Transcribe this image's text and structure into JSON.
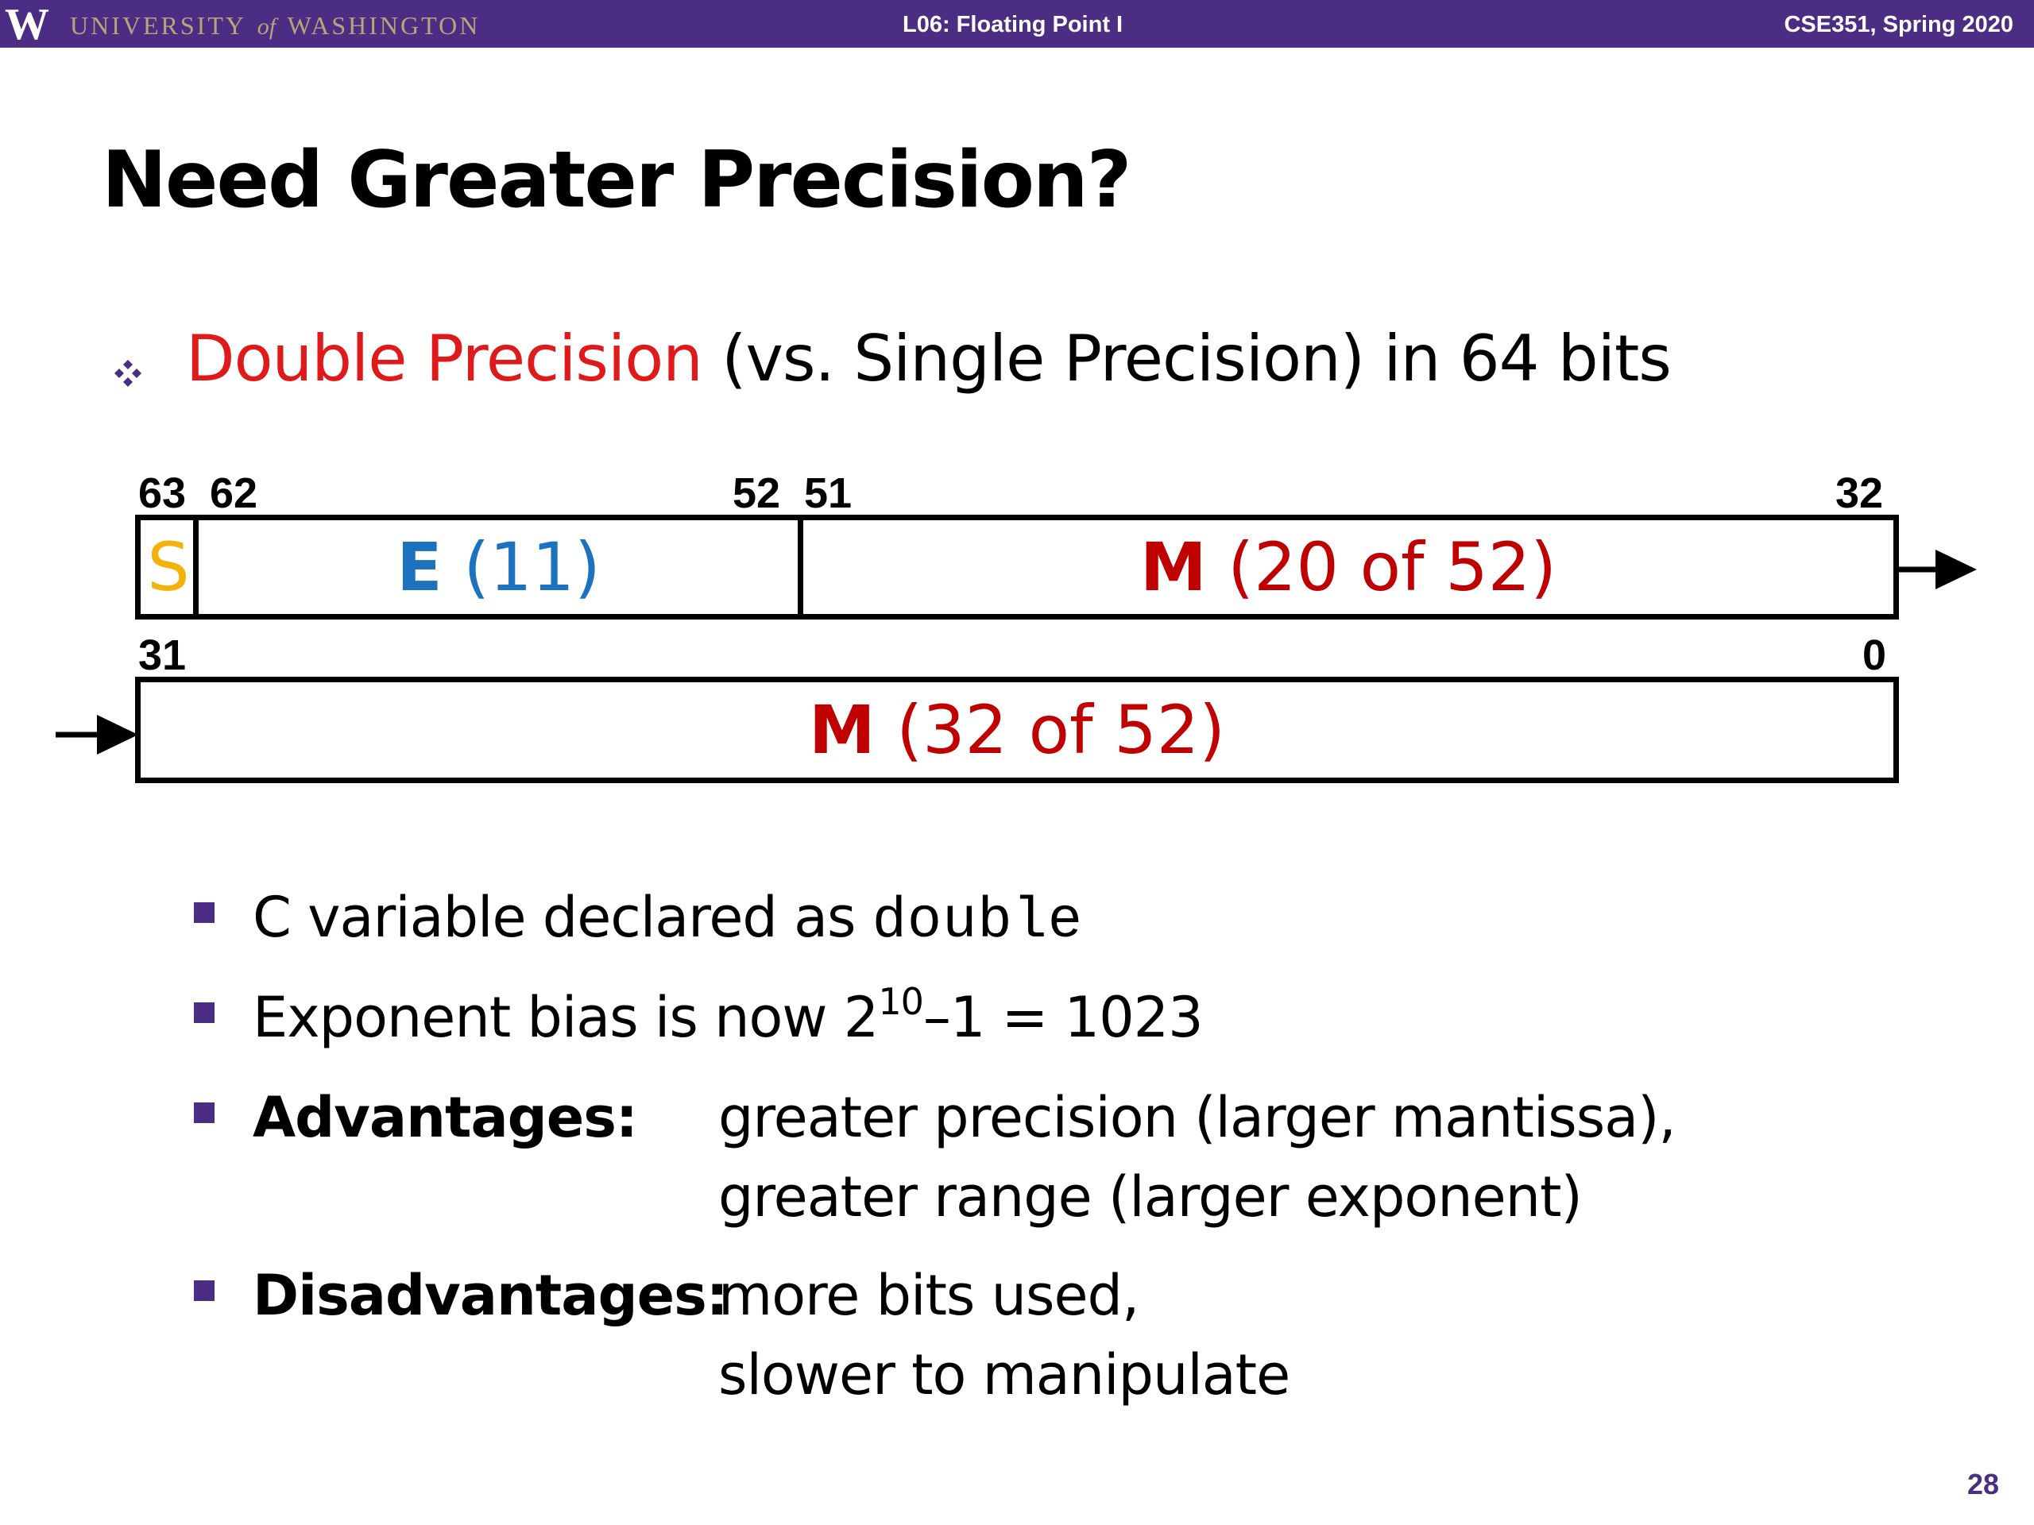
{
  "header": {
    "logo_letter": "W",
    "university_pre": "UNIVERSITY",
    "university_of": "of",
    "university_post": "WASHINGTON",
    "lecture": "L06: Floating Point I",
    "course": "CSE351, Spring 2020",
    "colors": {
      "bar": "#4b2e83",
      "gold": "#b7a57a"
    }
  },
  "title": "Need Greater Precision?",
  "main_bullet": {
    "icon": "diamond-bullet-icon",
    "highlight": "Double Precision",
    "rest": " (vs. Single Precision) in 64 bits"
  },
  "diagram": {
    "top_row": {
      "bit_63": "63",
      "bit_62": "62",
      "bit_52": "52",
      "bit_51": "51",
      "bit_32": "32",
      "sign": "S",
      "exp_letter": "E",
      "exp_count": " (11)",
      "mant_letter": "M",
      "mant_count": " (20 of 52)"
    },
    "bottom_row": {
      "bit_31": "31",
      "bit_0": "0",
      "mant_letter": "M",
      "mant_count": " (32 of 52)"
    },
    "colors": {
      "sign": "#f2b20a",
      "exponent": "#1d72c0",
      "mantissa": "#c00000"
    }
  },
  "sub_bullets": {
    "b1_text": "C variable declared as ",
    "b1_code": "double",
    "b2_text": "Exponent bias is now 2",
    "b2_sup": "10",
    "b2_rest": "–1 = 1023",
    "b3_label": "Advantages:",
    "b3_line1": "greater precision (larger mantissa),",
    "b3_line2": "greater range (larger exponent)",
    "b4_label": "Disadvantages:",
    "b4_line1": "more bits used,",
    "b4_line2": "slower to manipulate"
  },
  "page_number": "28"
}
